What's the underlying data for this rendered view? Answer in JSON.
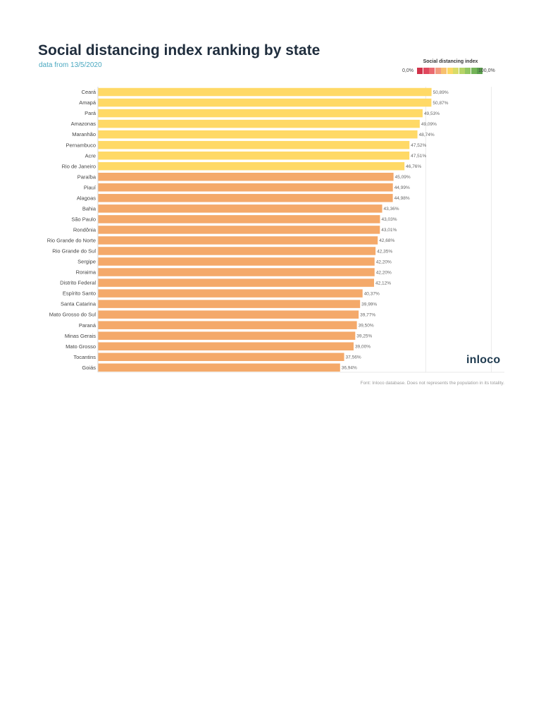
{
  "header": {
    "title": "Social distancing index ranking by state",
    "subtitle": "data from 13/5/2020"
  },
  "legend": {
    "title": "Social distancing index",
    "min_label": "0,0%",
    "max_label": "100,0%",
    "scale_colors": [
      "#d0324a",
      "#e0485e",
      "#ea6a70",
      "#f29a7e",
      "#f7c06e",
      "#fbd864",
      "#d8dc68",
      "#b6d468",
      "#92c662",
      "#74b458",
      "#5aa04c"
    ]
  },
  "brand": "inloco",
  "footnote": "Font: Inloco database. Does not represents the population in its totality.",
  "colors": {
    "high": "#ffd966",
    "low": "#f4a96a",
    "grid": "#e6e6e6"
  },
  "chart_data": {
    "type": "bar",
    "orientation": "horizontal",
    "categories": [
      "Ceará",
      "Amapá",
      "Pará",
      "Amazonas",
      "Maranhão",
      "Pernambuco",
      "Acre",
      "Rio de Janeiro",
      "Paraíba",
      "Piauí",
      "Alagoas",
      "Bahia",
      "São Paulo",
      "Rondônia",
      "Rio Grande do Norte",
      "Rio Grande do Sul",
      "Sergipe",
      "Roraima",
      "Distrito Federal",
      "Espírito Santo",
      "Santa Catarina",
      "Mato Grosso do Sul",
      "Paraná",
      "Minas Gerais",
      "Mato Grosso",
      "Tocantins",
      "Goiás"
    ],
    "values": [
      50.89,
      50.87,
      49.53,
      49.09,
      48.74,
      47.52,
      47.51,
      46.76,
      45.09,
      44.99,
      44.98,
      43.36,
      43.03,
      43.01,
      42.68,
      42.35,
      42.2,
      42.2,
      42.12,
      40.37,
      39.99,
      39.77,
      39.5,
      39.25,
      39.0,
      37.56,
      36.94
    ],
    "value_labels": [
      "50,89%",
      "50,87%",
      "49,53%",
      "49,09%",
      "48,74%",
      "47,52%",
      "47,51%",
      "46,76%",
      "45,09%",
      "44,99%",
      "44,98%",
      "43,36%",
      "43,03%",
      "43,01%",
      "42,68%",
      "42,35%",
      "42,20%",
      "42,20%",
      "42,12%",
      "40,37%",
      "39,99%",
      "39,77%",
      "39,50%",
      "39,25%",
      "39,00%",
      "37,56%",
      "36,94%"
    ],
    "color_groups": [
      "high",
      "high",
      "high",
      "high",
      "high",
      "high",
      "high",
      "high",
      "low",
      "low",
      "low",
      "low",
      "low",
      "low",
      "low",
      "low",
      "low",
      "low",
      "low",
      "low",
      "low",
      "low",
      "low",
      "low",
      "low",
      "low",
      "low"
    ],
    "xlim": [
      0,
      62
    ],
    "gridlines": [
      50,
      60
    ],
    "title": "",
    "xlabel": "",
    "ylabel": ""
  }
}
